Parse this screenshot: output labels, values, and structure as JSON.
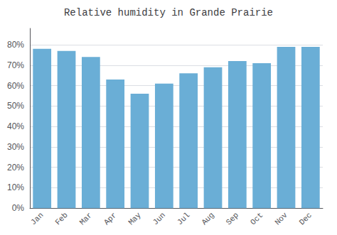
{
  "chart_data": {
    "type": "bar",
    "title": "Relative humidity in Grande Prairie",
    "categories": [
      "Jan",
      "Feb",
      "Mar",
      "Apr",
      "May",
      "Jun",
      "Jul",
      "Aug",
      "Sep",
      "Oct",
      "Nov",
      "Dec"
    ],
    "values": [
      78,
      77,
      74,
      63,
      56,
      61,
      66,
      69,
      72,
      71,
      79,
      79
    ],
    "color": "#6aaed6",
    "ylim": [
      0,
      88
    ],
    "yticks": [
      {
        "value": 0,
        "label": "0%"
      },
      {
        "value": 10,
        "label": "10%"
      },
      {
        "value": 20,
        "label": "20%"
      },
      {
        "value": 30,
        "label": "30%"
      },
      {
        "value": 40,
        "label": "40%"
      },
      {
        "value": 50,
        "label": "50%"
      },
      {
        "value": 60,
        "label": "60%"
      },
      {
        "value": 70,
        "label": "70%"
      },
      {
        "value": 80,
        "label": "80%"
      }
    ],
    "grid": true
  }
}
